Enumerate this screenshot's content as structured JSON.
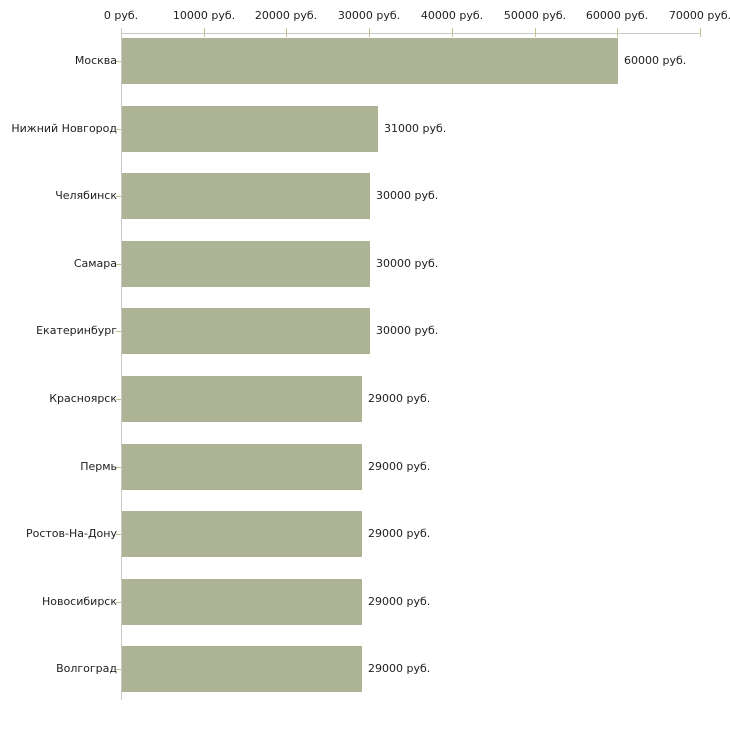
{
  "chart_data": {
    "type": "bar",
    "orientation": "horizontal",
    "title": "",
    "xlabel": "",
    "ylabel": "",
    "xlim": [
      0,
      70000
    ],
    "grid": false,
    "legend": "none",
    "categories": [
      "Москва",
      "Нижний Новгород",
      "Челябинск",
      "Самара",
      "Екатеринбург",
      "Красноярск",
      "Пермь",
      "Ростов-На-Дону",
      "Новосибирск",
      "Волгоград"
    ],
    "values": [
      60000,
      31000,
      30000,
      30000,
      30000,
      29000,
      29000,
      29000,
      29000,
      29000
    ],
    "value_labels": [
      "60000 руб.",
      "31000 руб.",
      "30000 руб.",
      "30000 руб.",
      "30000 руб.",
      "29000 руб.",
      "29000 руб.",
      "29000 руб.",
      "29000 руб.",
      "29000 руб."
    ],
    "x_ticks": [
      {
        "value": 0,
        "label": "0 руб."
      },
      {
        "value": 10000,
        "label": "10000 руб."
      },
      {
        "value": 20000,
        "label": "20000 руб."
      },
      {
        "value": 30000,
        "label": "30000 руб."
      },
      {
        "value": 40000,
        "label": "40000 руб."
      },
      {
        "value": 50000,
        "label": "50000 руб."
      },
      {
        "value": 60000,
        "label": "60000 руб."
      },
      {
        "value": 70000,
        "label": "70000 руб."
      }
    ],
    "colors": {
      "bar": "#ADB496",
      "axis": "#C9C9C3",
      "tick": "#C9BD8E",
      "text": "#1E1E1E",
      "background": "#FFFFFF"
    }
  }
}
